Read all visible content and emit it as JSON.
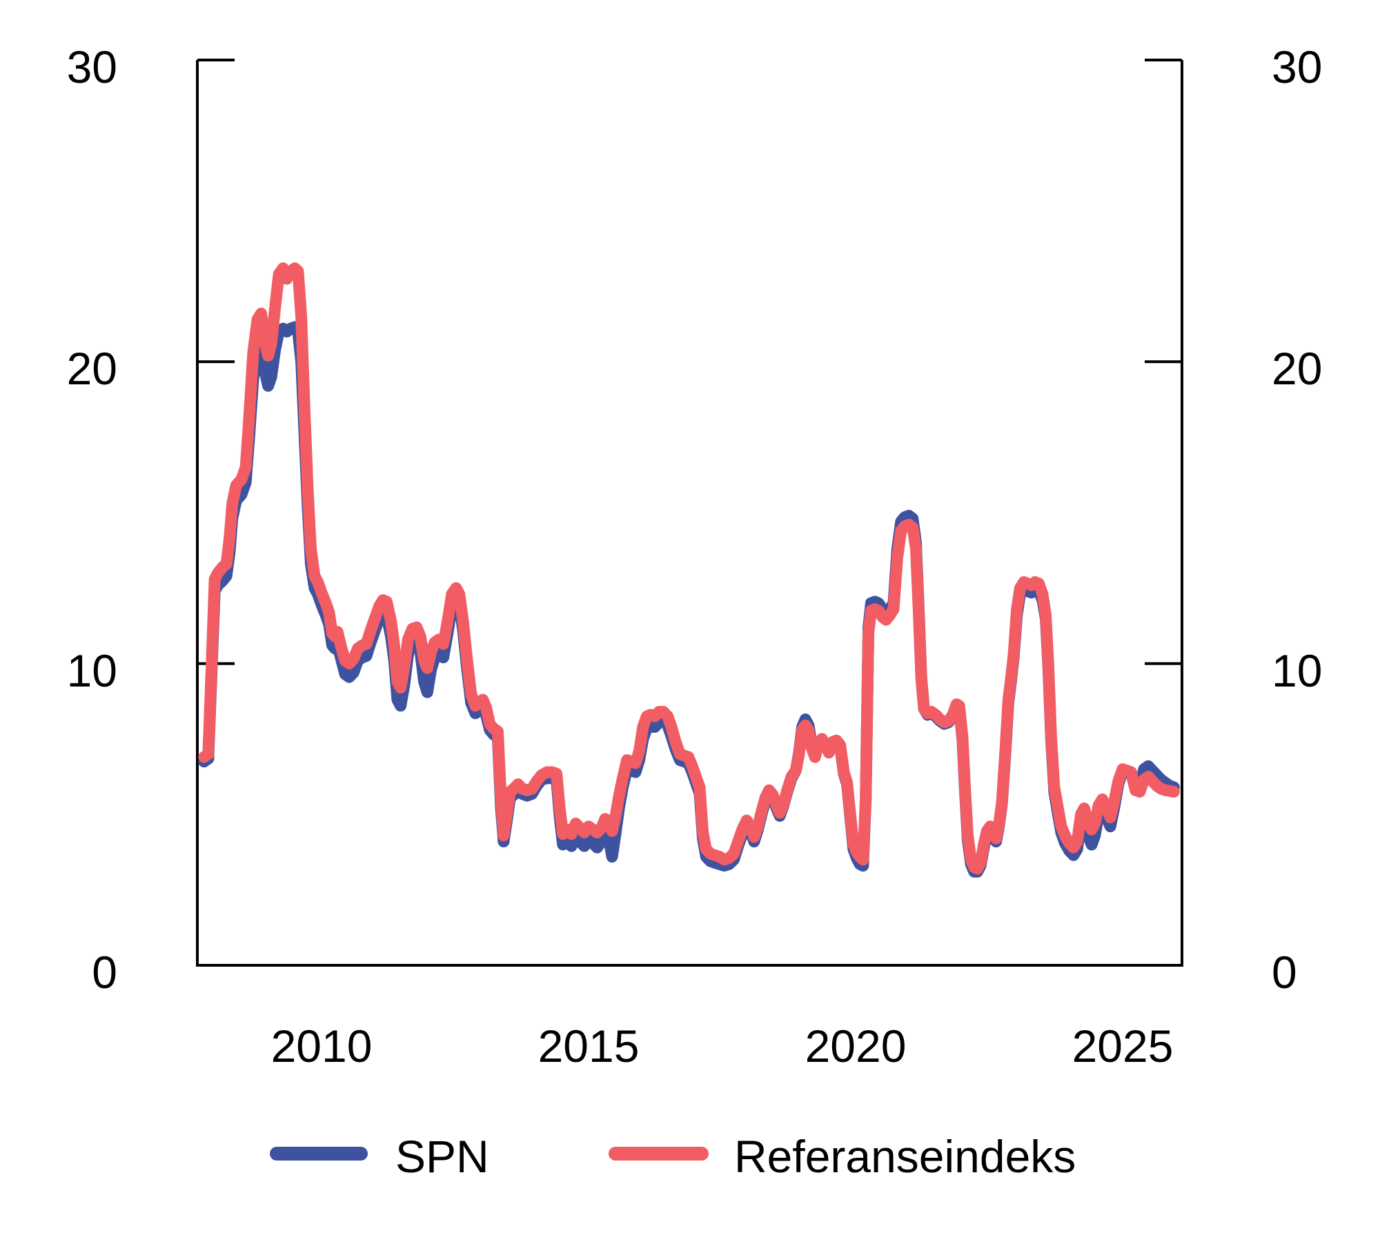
{
  "figure": {
    "background": "#ffffff",
    "axis_color": "#000000"
  },
  "y_axis": {
    "side_left_ticks": [
      "30",
      "20",
      "10",
      "0"
    ],
    "side_right_ticks": [
      "30",
      "20",
      "10",
      "0"
    ],
    "tick_values": [
      30,
      20,
      10,
      0
    ],
    "min": 0,
    "max": 30
  },
  "x_axis": {
    "ticks": [
      "2010",
      "2015",
      "2020",
      "2025"
    ],
    "tick_values": [
      2010,
      2015,
      2020,
      2025
    ]
  },
  "legend": {
    "items": [
      {
        "label": "SPN",
        "color": "#3E53A0"
      },
      {
        "label": "Referanseindeks",
        "color": "#F15D63"
      }
    ],
    "position": "bottom"
  },
  "chart_data": {
    "type": "line",
    "title": "",
    "xlabel": "",
    "ylabel": "",
    "x_range": [
      2007.8,
      2026.1
    ],
    "ylim": [
      0,
      30
    ],
    "grid": false,
    "columns": [
      "year",
      "SPN",
      "Referanseindeks"
    ],
    "series_meta": [
      {
        "name": "SPN",
        "color": "#3E53A0",
        "draw_order": 1
      },
      {
        "name": "Referanseindeks",
        "color": "#F15D63",
        "draw_order": 2
      }
    ],
    "points": [
      [
        2007.8,
        6.75,
        6.9
      ],
      [
        2007.88,
        6.85,
        7.0
      ],
      [
        2007.94,
        9.7,
        9.9
      ],
      [
        2008.0,
        12.4,
        12.8
      ],
      [
        2008.06,
        12.6,
        13.0
      ],
      [
        2008.15,
        12.75,
        13.2
      ],
      [
        2008.22,
        12.9,
        13.3
      ],
      [
        2008.28,
        13.7,
        14.2
      ],
      [
        2008.33,
        14.8,
        15.3
      ],
      [
        2008.4,
        15.4,
        15.9
      ],
      [
        2008.5,
        15.6,
        16.1
      ],
      [
        2008.58,
        16.0,
        16.5
      ],
      [
        2008.65,
        17.6,
        18.3
      ],
      [
        2008.72,
        19.4,
        20.3
      ],
      [
        2008.8,
        20.3,
        21.4
      ],
      [
        2008.87,
        20.5,
        21.6
      ],
      [
        2008.95,
        19.6,
        20.6
      ],
      [
        2009.0,
        19.2,
        20.2
      ],
      [
        2009.06,
        19.5,
        20.6
      ],
      [
        2009.13,
        20.4,
        21.8
      ],
      [
        2009.2,
        21.0,
        22.9
      ],
      [
        2009.28,
        21.1,
        23.1
      ],
      [
        2009.35,
        21.0,
        22.75
      ],
      [
        2009.42,
        21.1,
        23.0
      ],
      [
        2009.5,
        21.15,
        23.1
      ],
      [
        2009.56,
        21.0,
        23.0
      ],
      [
        2009.62,
        20.0,
        21.5
      ],
      [
        2009.68,
        17.6,
        18.5
      ],
      [
        2009.74,
        15.2,
        15.8
      ],
      [
        2009.8,
        13.3,
        13.8
      ],
      [
        2009.87,
        12.5,
        12.9
      ],
      [
        2009.93,
        12.3,
        12.7
      ],
      [
        2010.0,
        11.95,
        12.35
      ],
      [
        2010.08,
        11.6,
        12.0
      ],
      [
        2010.14,
        11.3,
        11.7
      ],
      [
        2010.2,
        10.6,
        11.0
      ],
      [
        2010.25,
        10.5,
        10.9
      ],
      [
        2010.3,
        10.6,
        11.05
      ],
      [
        2010.36,
        10.2,
        10.6
      ],
      [
        2010.44,
        9.65,
        10.1
      ],
      [
        2010.52,
        9.55,
        10.0
      ],
      [
        2010.6,
        9.7,
        10.15
      ],
      [
        2010.68,
        10.1,
        10.5
      ],
      [
        2010.76,
        10.2,
        10.6
      ],
      [
        2010.84,
        10.25,
        10.65
      ],
      [
        2010.92,
        10.7,
        11.1
      ],
      [
        2011.0,
        11.1,
        11.5
      ],
      [
        2011.08,
        11.5,
        11.9
      ],
      [
        2011.15,
        11.7,
        12.1
      ],
      [
        2011.22,
        11.6,
        12.05
      ],
      [
        2011.3,
        10.9,
        11.4
      ],
      [
        2011.36,
        10.1,
        10.6
      ],
      [
        2011.42,
        8.8,
        9.4
      ],
      [
        2011.48,
        8.6,
        9.2
      ],
      [
        2011.55,
        9.3,
        9.9
      ],
      [
        2011.62,
        10.3,
        10.8
      ],
      [
        2011.7,
        10.7,
        11.15
      ],
      [
        2011.78,
        10.75,
        11.2
      ],
      [
        2011.85,
        10.4,
        10.9
      ],
      [
        2011.92,
        9.4,
        10.1
      ],
      [
        2011.98,
        9.05,
        9.85
      ],
      [
        2012.05,
        9.8,
        10.4
      ],
      [
        2012.12,
        10.2,
        10.7
      ],
      [
        2012.2,
        10.35,
        10.8
      ],
      [
        2012.28,
        10.2,
        10.65
      ],
      [
        2012.36,
        11.0,
        11.4
      ],
      [
        2012.44,
        11.9,
        12.3
      ],
      [
        2012.52,
        12.15,
        12.5
      ],
      [
        2012.58,
        11.95,
        12.3
      ],
      [
        2012.65,
        11.1,
        11.4
      ],
      [
        2012.72,
        9.9,
        10.2
      ],
      [
        2012.8,
        8.7,
        9.0
      ],
      [
        2012.88,
        8.35,
        8.6
      ],
      [
        2012.95,
        8.45,
        8.7
      ],
      [
        2013.02,
        8.55,
        8.8
      ],
      [
        2013.08,
        8.3,
        8.55
      ],
      [
        2013.15,
        7.8,
        8.0
      ],
      [
        2013.22,
        7.65,
        7.85
      ],
      [
        2013.3,
        7.55,
        7.75
      ],
      [
        2013.36,
        5.2,
        5.5
      ],
      [
        2013.41,
        4.1,
        4.3
      ],
      [
        2013.47,
        4.8,
        5.0
      ],
      [
        2013.53,
        5.55,
        5.75
      ],
      [
        2013.6,
        5.65,
        5.85
      ],
      [
        2013.68,
        5.8,
        6.0
      ],
      [
        2013.76,
        5.68,
        5.85
      ],
      [
        2013.85,
        5.62,
        5.8
      ],
      [
        2013.94,
        5.68,
        5.85
      ],
      [
        2014.03,
        5.95,
        6.1
      ],
      [
        2014.12,
        6.15,
        6.3
      ],
      [
        2014.22,
        6.2,
        6.4
      ],
      [
        2014.32,
        6.2,
        6.4
      ],
      [
        2014.4,
        6.15,
        6.35
      ],
      [
        2014.46,
        4.9,
        5.2
      ],
      [
        2014.52,
        4.0,
        4.35
      ],
      [
        2014.6,
        4.1,
        4.5
      ],
      [
        2014.68,
        3.95,
        4.35
      ],
      [
        2014.76,
        4.3,
        4.7
      ],
      [
        2014.84,
        4.1,
        4.55
      ],
      [
        2014.92,
        3.95,
        4.4
      ],
      [
        2015.0,
        4.15,
        4.6
      ],
      [
        2015.08,
        4.05,
        4.5
      ],
      [
        2015.16,
        3.9,
        4.4
      ],
      [
        2015.24,
        4.1,
        4.55
      ],
      [
        2015.31,
        4.5,
        4.85
      ],
      [
        2015.38,
        4.2,
        4.75
      ],
      [
        2015.44,
        3.6,
        4.45
      ],
      [
        2015.5,
        4.3,
        4.9
      ],
      [
        2015.57,
        5.2,
        5.6
      ],
      [
        2015.64,
        5.9,
        6.2
      ],
      [
        2015.72,
        6.5,
        6.8
      ],
      [
        2015.8,
        6.45,
        6.75
      ],
      [
        2015.88,
        6.4,
        6.7
      ],
      [
        2015.95,
        6.8,
        7.1
      ],
      [
        2016.02,
        7.5,
        7.9
      ],
      [
        2016.09,
        7.85,
        8.25
      ],
      [
        2016.16,
        7.9,
        8.3
      ],
      [
        2016.24,
        7.9,
        8.25
      ],
      [
        2016.32,
        8.05,
        8.4
      ],
      [
        2016.4,
        8.1,
        8.4
      ],
      [
        2016.48,
        7.95,
        8.25
      ],
      [
        2016.55,
        7.6,
        7.9
      ],
      [
        2016.63,
        7.15,
        7.4
      ],
      [
        2016.71,
        6.8,
        7.0
      ],
      [
        2016.79,
        6.75,
        6.95
      ],
      [
        2016.87,
        6.7,
        6.9
      ],
      [
        2016.94,
        6.4,
        6.6
      ],
      [
        2017.02,
        6.0,
        6.2
      ],
      [
        2017.08,
        5.7,
        5.9
      ],
      [
        2017.14,
        4.2,
        4.4
      ],
      [
        2017.2,
        3.6,
        3.85
      ],
      [
        2017.28,
        3.45,
        3.7
      ],
      [
        2017.36,
        3.4,
        3.65
      ],
      [
        2017.45,
        3.35,
        3.6
      ],
      [
        2017.54,
        3.3,
        3.5
      ],
      [
        2017.63,
        3.35,
        3.55
      ],
      [
        2017.72,
        3.5,
        3.7
      ],
      [
        2017.8,
        3.95,
        4.1
      ],
      [
        2017.88,
        4.35,
        4.5
      ],
      [
        2017.96,
        4.65,
        4.8
      ],
      [
        2018.03,
        4.45,
        4.6
      ],
      [
        2018.1,
        4.1,
        4.25
      ],
      [
        2018.17,
        4.5,
        4.6
      ],
      [
        2018.24,
        5.0,
        5.1
      ],
      [
        2018.31,
        5.45,
        5.55
      ],
      [
        2018.38,
        5.7,
        5.8
      ],
      [
        2018.45,
        5.55,
        5.65
      ],
      [
        2018.52,
        5.2,
        5.3
      ],
      [
        2018.58,
        4.95,
        5.05
      ],
      [
        2018.65,
        5.3,
        5.35
      ],
      [
        2018.72,
        5.75,
        5.8
      ],
      [
        2018.8,
        6.2,
        6.25
      ],
      [
        2018.88,
        6.45,
        6.45
      ],
      [
        2018.94,
        7.05,
        7.0
      ],
      [
        2019.0,
        7.9,
        7.8
      ],
      [
        2019.06,
        8.15,
        7.95
      ],
      [
        2019.12,
        7.95,
        7.8
      ],
      [
        2019.18,
        7.3,
        7.2
      ],
      [
        2019.24,
        6.95,
        6.9
      ],
      [
        2019.3,
        7.3,
        7.3
      ],
      [
        2019.37,
        7.5,
        7.5
      ],
      [
        2019.44,
        7.3,
        7.3
      ],
      [
        2019.5,
        7.05,
        7.05
      ],
      [
        2019.57,
        7.4,
        7.4
      ],
      [
        2019.64,
        7.4,
        7.45
      ],
      [
        2019.71,
        7.25,
        7.3
      ],
      [
        2019.78,
        6.35,
        6.4
      ],
      [
        2019.84,
        6.0,
        6.05
      ],
      [
        2019.9,
        4.9,
        5.0
      ],
      [
        2019.96,
        3.85,
        4.0
      ],
      [
        2020.02,
        3.55,
        3.75
      ],
      [
        2020.08,
        3.35,
        3.6
      ],
      [
        2020.14,
        3.3,
        3.5
      ],
      [
        2020.19,
        5.5,
        5.5
      ],
      [
        2020.24,
        11.2,
        11.0
      ],
      [
        2020.29,
        12.0,
        11.75
      ],
      [
        2020.36,
        12.05,
        11.8
      ],
      [
        2020.43,
        12.0,
        11.75
      ],
      [
        2020.5,
        11.8,
        11.55
      ],
      [
        2020.57,
        11.65,
        11.45
      ],
      [
        2020.64,
        11.8,
        11.6
      ],
      [
        2020.71,
        12.0,
        11.8
      ],
      [
        2020.78,
        13.8,
        13.5
      ],
      [
        2020.85,
        14.7,
        14.4
      ],
      [
        2020.92,
        14.85,
        14.55
      ],
      [
        2021.0,
        14.9,
        14.6
      ],
      [
        2021.07,
        14.8,
        14.5
      ],
      [
        2021.13,
        14.0,
        13.8
      ],
      [
        2021.18,
        11.9,
        11.8
      ],
      [
        2021.23,
        9.55,
        9.5
      ],
      [
        2021.28,
        8.5,
        8.5
      ],
      [
        2021.35,
        8.3,
        8.35
      ],
      [
        2021.42,
        8.35,
        8.4
      ],
      [
        2021.5,
        8.25,
        8.3
      ],
      [
        2021.58,
        8.1,
        8.15
      ],
      [
        2021.66,
        8.0,
        8.05
      ],
      [
        2021.74,
        8.05,
        8.1
      ],
      [
        2021.82,
        8.25,
        8.3
      ],
      [
        2021.89,
        8.6,
        8.65
      ],
      [
        2021.94,
        8.55,
        8.6
      ],
      [
        2022.0,
        7.5,
        7.6
      ],
      [
        2022.05,
        5.7,
        5.8
      ],
      [
        2022.1,
        4.15,
        4.3
      ],
      [
        2022.16,
        3.35,
        3.5
      ],
      [
        2022.22,
        3.1,
        3.25
      ],
      [
        2022.28,
        3.1,
        3.2
      ],
      [
        2022.34,
        3.3,
        3.4
      ],
      [
        2022.4,
        3.9,
        4.0
      ],
      [
        2022.46,
        4.35,
        4.45
      ],
      [
        2022.52,
        4.5,
        4.6
      ],
      [
        2022.58,
        4.35,
        4.45
      ],
      [
        2022.63,
        4.1,
        4.2
      ],
      [
        2022.68,
        4.55,
        4.6
      ],
      [
        2022.74,
        5.35,
        5.4
      ],
      [
        2022.8,
        6.9,
        7.0
      ],
      [
        2022.86,
        8.7,
        8.8
      ],
      [
        2022.91,
        9.4,
        9.5
      ],
      [
        2022.96,
        10.2,
        10.3
      ],
      [
        2023.02,
        11.6,
        11.8
      ],
      [
        2023.08,
        12.3,
        12.5
      ],
      [
        2023.15,
        12.45,
        12.7
      ],
      [
        2023.22,
        12.4,
        12.65
      ],
      [
        2023.29,
        12.35,
        12.6
      ],
      [
        2023.36,
        12.45,
        12.7
      ],
      [
        2023.43,
        12.4,
        12.65
      ],
      [
        2023.5,
        12.1,
        12.3
      ],
      [
        2023.56,
        11.5,
        11.6
      ],
      [
        2023.61,
        9.8,
        9.9
      ],
      [
        2023.66,
        7.5,
        7.6
      ],
      [
        2023.72,
        5.75,
        5.9
      ],
      [
        2023.78,
        5.1,
        5.3
      ],
      [
        2023.85,
        4.4,
        4.6
      ],
      [
        2023.92,
        4.05,
        4.3
      ],
      [
        2024.0,
        3.8,
        4.05
      ],
      [
        2024.08,
        3.65,
        3.9
      ],
      [
        2024.15,
        3.85,
        4.1
      ],
      [
        2024.22,
        4.8,
        5.0
      ],
      [
        2024.28,
        5.0,
        5.2
      ],
      [
        2024.35,
        4.3,
        4.7
      ],
      [
        2024.42,
        4.0,
        4.5
      ],
      [
        2024.48,
        4.3,
        4.7
      ],
      [
        2024.55,
        5.0,
        5.3
      ],
      [
        2024.62,
        5.3,
        5.5
      ],
      [
        2024.7,
        4.9,
        5.2
      ],
      [
        2024.77,
        4.6,
        4.9
      ],
      [
        2024.84,
        5.2,
        5.4
      ],
      [
        2024.92,
        6.0,
        6.1
      ],
      [
        2025.0,
        6.45,
        6.5
      ],
      [
        2025.08,
        6.4,
        6.45
      ],
      [
        2025.16,
        6.35,
        6.4
      ],
      [
        2025.24,
        5.85,
        5.8
      ],
      [
        2025.32,
        5.9,
        5.75
      ],
      [
        2025.4,
        6.5,
        6.15
      ],
      [
        2025.48,
        6.6,
        6.25
      ],
      [
        2025.56,
        6.45,
        6.1
      ],
      [
        2025.64,
        6.3,
        5.95
      ],
      [
        2025.72,
        6.15,
        5.85
      ],
      [
        2025.8,
        6.05,
        5.8
      ],
      [
        2025.88,
        5.95,
        5.78
      ],
      [
        2025.96,
        5.9,
        5.75
      ]
    ]
  }
}
